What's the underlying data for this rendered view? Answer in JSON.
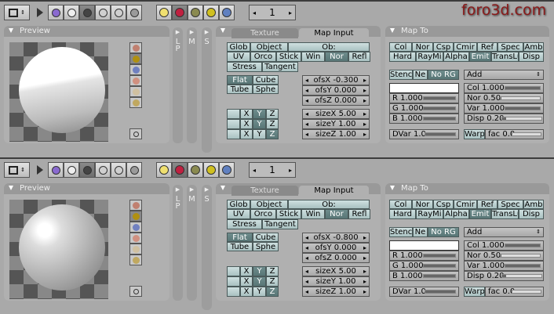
{
  "watermark": "foro3d.com",
  "panels": [
    {
      "header": {
        "frame": "1",
        "context_icons": [
          "logic-icon",
          "script-icon",
          "shading-icon",
          "object-icon",
          "editing-icon",
          "scene-icon"
        ],
        "shading_icons": [
          "lamp-icon",
          "material-icon",
          "texture-icon",
          "radiosity-icon",
          "world-icon"
        ],
        "active_context": 2,
        "active_shading": 1
      },
      "preview": {
        "title": "Preview"
      },
      "side_tabs": [
        "L\nP",
        "M",
        "S"
      ],
      "map_input": {
        "tabs": [
          "Texture",
          "Map Input"
        ],
        "active_tab": 1,
        "coords_row1": [
          "Glob",
          "Object",
          "Ob:"
        ],
        "coords_row2": [
          "UV",
          "Orco",
          "Stick",
          "Win",
          "Nor",
          "Refl"
        ],
        "active_coord": 4,
        "coords_row3": [
          "Stress",
          "Tangent"
        ],
        "projection": [
          "Flat",
          "Cube",
          "Tube",
          "Sphe"
        ],
        "active_projection": 0,
        "axes": [
          [
            "",
            "X",
            "Y",
            "Z"
          ],
          [
            "",
            "X",
            "Y",
            "Z"
          ],
          [
            "",
            "X",
            "Y",
            "Z"
          ]
        ],
        "active_axes": [
          2,
          2,
          3
        ],
        "ofs": [
          "ofsX -0.300",
          "ofsY 0.000",
          "ofsZ 0.000"
        ],
        "size": [
          "sizeX 5.00",
          "sizeY 1.00",
          "sizeZ 1.00"
        ]
      },
      "map_to": {
        "title": "Map To",
        "row1": [
          "Col",
          "Nor",
          "Csp",
          "Cmir",
          "Ref",
          "Spec",
          "Amb"
        ],
        "row2": [
          "Hard",
          "RayMi",
          "Alpha",
          "Emit",
          "TransLu",
          "Disp"
        ],
        "active_row2": 3,
        "stencil": [
          "Stenc",
          "Ne",
          "No RG"
        ],
        "active_stencil": 2,
        "blend_mode": "Add",
        "swatch_color": "#ffffff",
        "rgb": [
          {
            "label": "R 1.000",
            "fill": 1.0
          },
          {
            "label": "G 1.000",
            "fill": 1.0
          },
          {
            "label": "B 1.000",
            "fill": 1.0
          }
        ],
        "factors": [
          {
            "label": "Col 1.000",
            "fill": 1.0
          },
          {
            "label": "Nor 0.50",
            "fill": 0.02
          },
          {
            "label": "Var 1.000",
            "fill": 1.0
          },
          {
            "label": "Disp 0.20",
            "fill": 0.1
          }
        ],
        "dvar": {
          "label": "DVar 1.0",
          "fill": 1.0
        },
        "warp": "Warp",
        "fac": {
          "label": "fac 0.0",
          "fill": 0.0
        }
      }
    },
    {
      "header": {
        "frame": "1",
        "context_icons": [
          "logic-icon",
          "script-icon",
          "shading-icon",
          "object-icon",
          "editing-icon",
          "scene-icon"
        ],
        "shading_icons": [
          "lamp-icon",
          "material-icon",
          "texture-icon",
          "radiosity-icon",
          "world-icon"
        ],
        "active_context": 2,
        "active_shading": 1
      },
      "preview": {
        "title": "Preview"
      },
      "side_tabs": [
        "L\nP",
        "M",
        "S"
      ],
      "map_input": {
        "tabs": [
          "Texture",
          "Map Input"
        ],
        "active_tab": 1,
        "coords_row1": [
          "Glob",
          "Object",
          "Ob:"
        ],
        "coords_row2": [
          "UV",
          "Orco",
          "Stick",
          "Win",
          "Nor",
          "Refl"
        ],
        "active_coord": 4,
        "coords_row3": [
          "Stress",
          "Tangent"
        ],
        "projection": [
          "Flat",
          "Cube",
          "Tube",
          "Sphe"
        ],
        "active_projection": 0,
        "axes": [
          [
            "",
            "X",
            "Y",
            "Z"
          ],
          [
            "",
            "X",
            "Y",
            "Z"
          ],
          [
            "",
            "X",
            "Y",
            "Z"
          ]
        ],
        "active_axes": [
          2,
          2,
          3
        ],
        "ofs": [
          "ofsX -0.800",
          "ofsY 0.000",
          "ofsZ 0.000"
        ],
        "size": [
          "sizeX 5.00",
          "sizeY 1.00",
          "sizeZ 1.00"
        ]
      },
      "map_to": {
        "title": "Map To",
        "row1": [
          "Col",
          "Nor",
          "Csp",
          "Cmir",
          "Ref",
          "Spec",
          "Amb"
        ],
        "row2": [
          "Hard",
          "RayMi",
          "Alpha",
          "Emit",
          "TransLu",
          "Disp"
        ],
        "active_row2": 3,
        "stencil": [
          "Stenc",
          "Ne",
          "No RG"
        ],
        "active_stencil": 2,
        "blend_mode": "Add",
        "swatch_color": "#ffffff",
        "rgb": [
          {
            "label": "R 1.000",
            "fill": 1.0
          },
          {
            "label": "G 1.000",
            "fill": 1.0
          },
          {
            "label": "B 1.000",
            "fill": 1.0
          }
        ],
        "factors": [
          {
            "label": "Col 1.000",
            "fill": 1.0
          },
          {
            "label": "Nor 0.50",
            "fill": 0.02
          },
          {
            "label": "Var 1.000",
            "fill": 1.0
          },
          {
            "label": "Disp 0.20",
            "fill": 0.1
          }
        ],
        "dvar": {
          "label": "DVar 1.0",
          "fill": 1.0
        },
        "warp": "Warp",
        "fac": {
          "label": "fac 0.0",
          "fill": 0.0
        }
      }
    }
  ]
}
